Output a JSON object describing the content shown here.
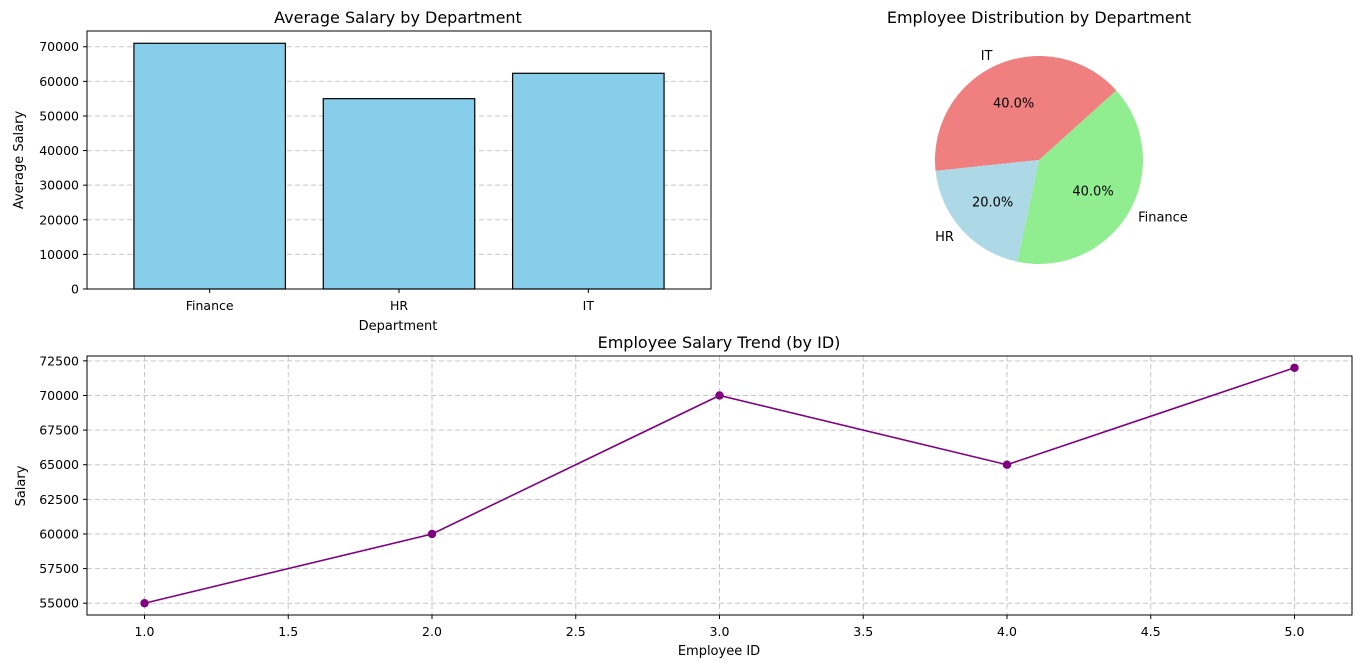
{
  "chart_data": [
    {
      "type": "bar",
      "title": "Average Salary by Department",
      "xlabel": "Department",
      "ylabel": "Average Salary",
      "categories": [
        "Finance",
        "HR",
        "IT"
      ],
      "values": [
        71000,
        55000,
        62333
      ],
      "ylim": [
        0,
        74550
      ],
      "yticks": [
        0,
        10000,
        20000,
        30000,
        40000,
        50000,
        60000,
        70000
      ],
      "grid": "y",
      "bar_color": "#87ceeb",
      "edge_color": "#000000"
    },
    {
      "type": "pie",
      "title": "Employee Distribution by Department",
      "categories": [
        "Finance",
        "IT",
        "HR"
      ],
      "values": [
        40.0,
        40.0,
        20.0
      ],
      "labels": [
        "40.0%",
        "40.0%",
        "20.0%"
      ],
      "colors": [
        "#90ee90",
        "#f08080",
        "#add8e6"
      ],
      "start_angle": 140
    },
    {
      "type": "line",
      "title": "Employee Salary Trend (by ID)",
      "xlabel": "Employee ID",
      "ylabel": "Salary",
      "x": [
        1,
        2,
        3,
        4,
        5
      ],
      "y": [
        55000,
        60000,
        70000,
        65000,
        72000
      ],
      "xlim": [
        0.8,
        5.2
      ],
      "ylim": [
        54150,
        72850
      ],
      "xticks": [
        "1.0",
        "1.5",
        "2.0",
        "2.5",
        "3.0",
        "3.5",
        "4.0",
        "4.5",
        "5.0"
      ],
      "yticks": [
        55000,
        57500,
        60000,
        62500,
        65000,
        67500,
        70000,
        72500
      ],
      "grid": "both",
      "color": "#800080",
      "marker": "circle"
    }
  ]
}
